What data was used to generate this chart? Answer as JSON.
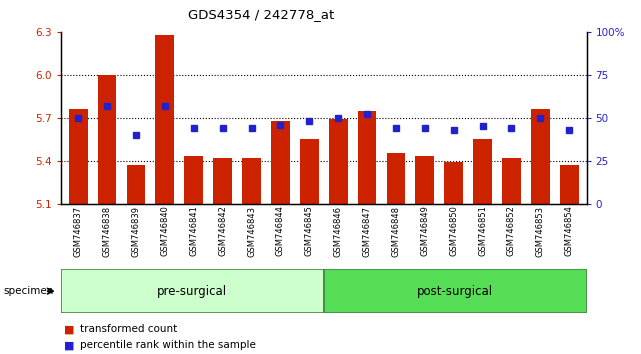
{
  "title": "GDS4354 / 242778_at",
  "samples": [
    "GSM746837",
    "GSM746838",
    "GSM746839",
    "GSM746840",
    "GSM746841",
    "GSM746842",
    "GSM746843",
    "GSM746844",
    "GSM746845",
    "GSM746846",
    "GSM746847",
    "GSM746848",
    "GSM746849",
    "GSM746850",
    "GSM746851",
    "GSM746852",
    "GSM746853",
    "GSM746854"
  ],
  "bar_values": [
    5.76,
    6.0,
    5.37,
    6.28,
    5.43,
    5.42,
    5.42,
    5.68,
    5.55,
    5.69,
    5.75,
    5.45,
    5.43,
    5.39,
    5.55,
    5.42,
    5.76,
    5.37
  ],
  "percentile_values": [
    50,
    57,
    40,
    57,
    44,
    44,
    44,
    46,
    48,
    50,
    52,
    44,
    44,
    43,
    45,
    44,
    50,
    43
  ],
  "bar_color": "#cc2200",
  "dot_color": "#2222cc",
  "y_min": 5.1,
  "y_max": 6.3,
  "y_ticks": [
    5.1,
    5.4,
    5.7,
    6.0,
    6.3
  ],
  "y_right_ticks": [
    0,
    25,
    50,
    75,
    100
  ],
  "y_right_labels": [
    "0",
    "25",
    "50",
    "75",
    "100%"
  ],
  "pre_surgical_count": 9,
  "post_surgical_count": 9,
  "pre_surgical_label": "pre-surgical",
  "post_surgical_label": "post-surgical",
  "specimen_label": "specimen",
  "legend_bar_label": "transformed count",
  "legend_dot_label": "percentile rank within the sample",
  "pre_bg": "#ccffcc",
  "post_bg": "#55dd55",
  "xlabel_bg": "#cccccc",
  "bar_bottom": 5.1
}
